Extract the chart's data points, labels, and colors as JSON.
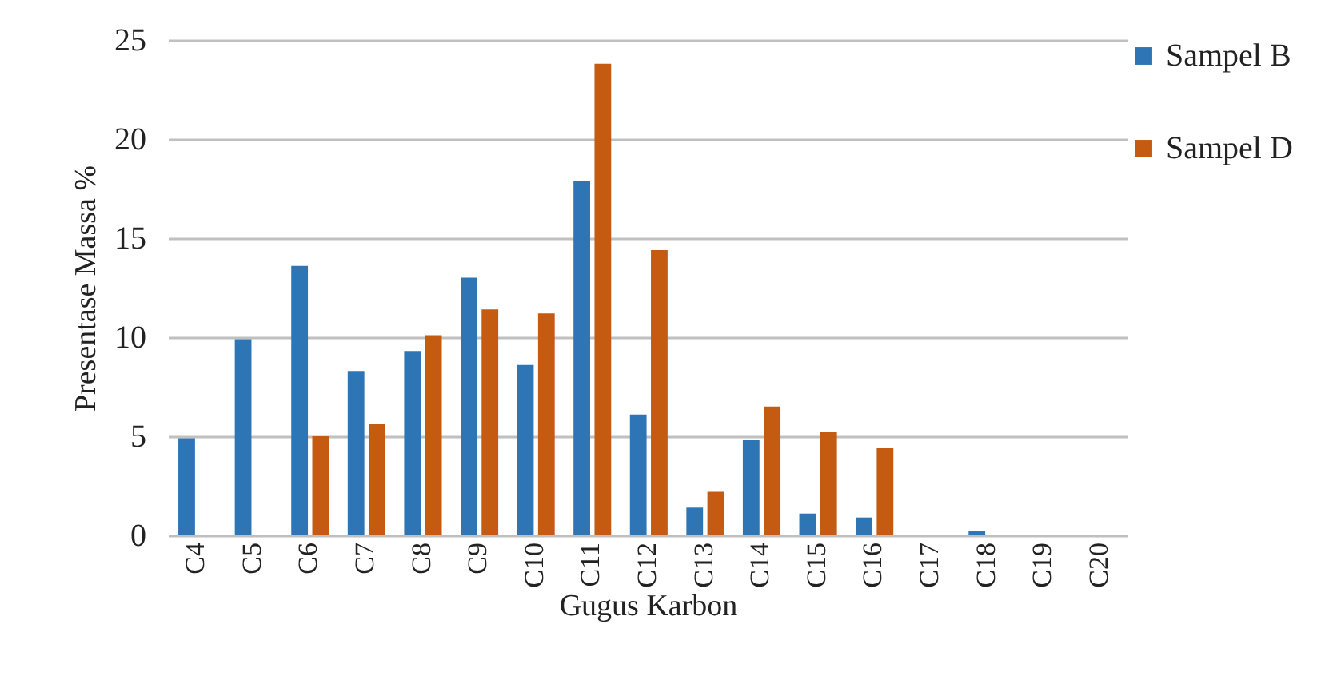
{
  "chart_data": {
    "type": "bar",
    "xlabel": "Gugus Karbon",
    "ylabel": "Presentase Massa %",
    "categories": [
      "C4",
      "C5",
      "C6",
      "C7",
      "C8",
      "C9",
      "C10",
      "C11",
      "C12",
      "C13",
      "C14",
      "C15",
      "C16",
      "C17",
      "C18",
      "C19",
      "C20"
    ],
    "series": [
      {
        "name": "Sampel B",
        "color": "#2e75b6",
        "values": [
          4.9,
          9.9,
          13.6,
          8.3,
          9.3,
          13.0,
          8.6,
          17.9,
          6.1,
          1.4,
          4.8,
          1.1,
          0.9,
          0,
          0.2,
          0,
          0
        ]
      },
      {
        "name": "Sampel D",
        "color": "#c55a11",
        "values": [
          0,
          0,
          5.0,
          5.6,
          10.1,
          11.4,
          11.2,
          23.8,
          14.4,
          2.2,
          6.5,
          5.2,
          4.4,
          0,
          0,
          0,
          0
        ]
      }
    ],
    "ylim": [
      0,
      25
    ],
    "yticks": [
      0,
      5,
      10,
      15,
      20,
      25
    ],
    "grid": "y",
    "legend": "right"
  }
}
